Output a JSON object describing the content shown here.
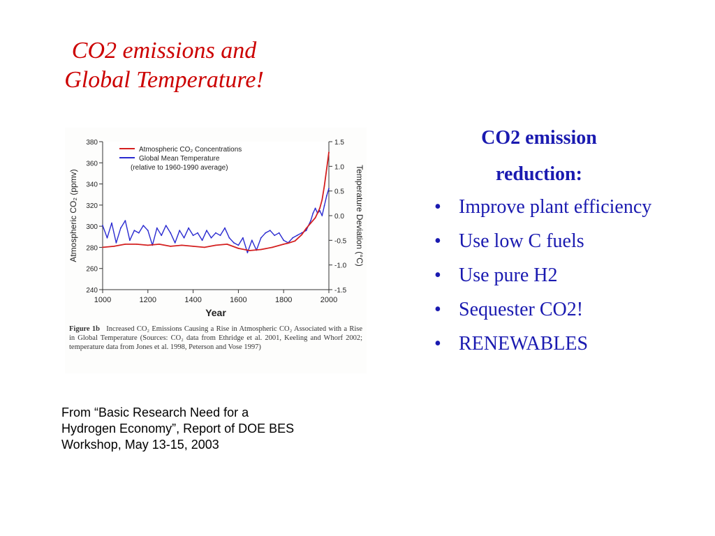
{
  "slide": {
    "title_lines": [
      "CO2 emissions and",
      "Global Temperature!"
    ],
    "title_color": "#cc0000",
    "source_lines": [
      "From “Basic Research Need for a",
      "Hydrogen Economy”, Report of DOE BES",
      "Workshop, May 13-15, 2003"
    ]
  },
  "right_panel": {
    "heading_lines": [
      "CO2 emission",
      "reduction:"
    ],
    "text_color": "#1a1ab0",
    "bullet_symbol": "•",
    "bullets": [
      "Improve plant efficiency",
      "Use low C fuels",
      "Use pure H2",
      "Sequester CO2!",
      "RENEWABLES"
    ]
  },
  "figure": {
    "caption_label": "Figure 1b",
    "caption_text": "Increased CO₂ Emissions Causing a Rise in Atmospheric CO₂ Associated with a Rise in Global Temperature (Sources: CO₂ data from Ethridge et al. 2001, Keeling and Whorf 2002; temperature data from Jones et al. 1998, Peterson and Vose 1997)"
  },
  "chart_data": {
    "type": "line",
    "title": "",
    "xlabel": "Year",
    "ylabel_left": "Atmospheric CO₂ (ppmv)",
    "ylabel_right": "Temperature Deviation (°C)",
    "xlim": [
      1000,
      2000
    ],
    "ylim_left": [
      240,
      380
    ],
    "ylim_right": [
      -1.5,
      1.5
    ],
    "x_ticks": [
      "1000",
      "1200",
      "1400",
      "1600",
      "1800",
      "2000"
    ],
    "y_left_ticks": [
      "240",
      "260",
      "280",
      "300",
      "320",
      "340",
      "360",
      "380"
    ],
    "y_right_ticks": [
      "-1.5",
      "-1.0",
      "-0.5",
      "0.0",
      "0.5",
      "1.0",
      "1.5"
    ],
    "legend": {
      "placement": "top-left",
      "entries": [
        "Atmospheric CO₂ Concentrations",
        "Global Mean Temperature",
        "(relative to 1960-1990 average)"
      ]
    },
    "series": [
      {
        "name": "Atmospheric CO₂ Concentrations",
        "axis": "left",
        "color": "#d42020",
        "x": [
          1000,
          1050,
          1100,
          1150,
          1200,
          1250,
          1300,
          1350,
          1400,
          1450,
          1500,
          1550,
          1600,
          1650,
          1700,
          1750,
          1800,
          1820,
          1850,
          1880,
          1900,
          1920,
          1940,
          1960,
          1970,
          1980,
          1990,
          2000
        ],
        "values": [
          280,
          281,
          283,
          283,
          282,
          283,
          281,
          282,
          281,
          280,
          282,
          283,
          279,
          277,
          278,
          280,
          283,
          284,
          286,
          292,
          298,
          303,
          308,
          317,
          325,
          338,
          354,
          370
        ]
      },
      {
        "name": "Global Mean Temperature",
        "axis": "right",
        "color": "#2a2ad0",
        "x": [
          1000,
          1020,
          1040,
          1060,
          1080,
          1100,
          1120,
          1140,
          1160,
          1180,
          1200,
          1220,
          1240,
          1260,
          1280,
          1300,
          1320,
          1340,
          1360,
          1380,
          1400,
          1420,
          1440,
          1460,
          1480,
          1500,
          1520,
          1540,
          1560,
          1580,
          1600,
          1620,
          1640,
          1660,
          1680,
          1700,
          1720,
          1740,
          1760,
          1780,
          1800,
          1820,
          1840,
          1860,
          1880,
          1900,
          1910,
          1920,
          1930,
          1940,
          1950,
          1960,
          1970,
          1980,
          1990,
          2000
        ],
        "values": [
          -0.2,
          -0.45,
          -0.15,
          -0.55,
          -0.25,
          -0.1,
          -0.5,
          -0.3,
          -0.35,
          -0.2,
          -0.3,
          -0.6,
          -0.25,
          -0.4,
          -0.2,
          -0.35,
          -0.55,
          -0.3,
          -0.45,
          -0.25,
          -0.4,
          -0.35,
          -0.5,
          -0.3,
          -0.45,
          -0.35,
          -0.4,
          -0.25,
          -0.45,
          -0.55,
          -0.6,
          -0.45,
          -0.75,
          -0.5,
          -0.7,
          -0.45,
          -0.35,
          -0.3,
          -0.4,
          -0.35,
          -0.5,
          -0.55,
          -0.45,
          -0.4,
          -0.35,
          -0.3,
          -0.2,
          -0.1,
          0.05,
          0.15,
          0.05,
          0.1,
          0.0,
          0.2,
          0.4,
          0.55
        ]
      }
    ]
  }
}
